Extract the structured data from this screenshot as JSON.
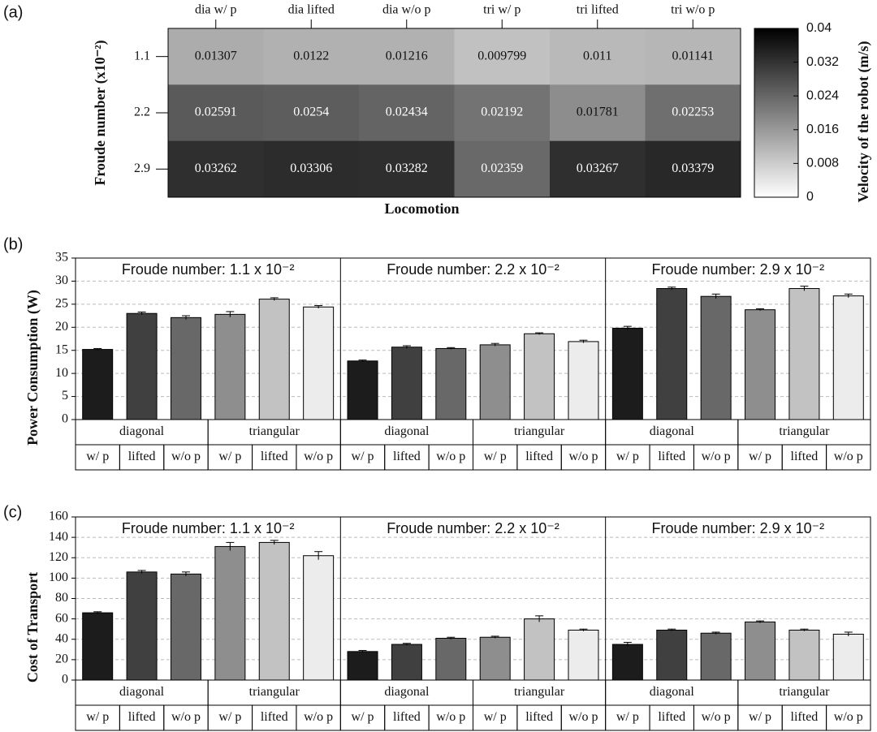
{
  "chart_data": [
    {
      "type": "heatmap",
      "panel_label": "(a)",
      "x_categories": [
        "dia w/ p",
        "dia lifted",
        "dia w/o p",
        "tri w/ p",
        "tri lifted",
        "tri w/o p"
      ],
      "y_categories": [
        "1.1",
        "2.2",
        "2.9"
      ],
      "values": [
        [
          0.01307,
          0.0122,
          0.01216,
          0.009799,
          0.011,
          0.01141
        ],
        [
          0.02591,
          0.0254,
          0.02434,
          0.02192,
          0.01781,
          0.02253
        ],
        [
          0.03262,
          0.03306,
          0.03282,
          0.02359,
          0.03267,
          0.03379
        ]
      ],
      "xlabel": "Locomotion",
      "ylabel": "Froude number (x10⁻²)",
      "colorbar_label": "Velocity of the robot (m/s)",
      "clim": [
        0,
        0.04
      ],
      "cticks": [
        0,
        0.008,
        0.016,
        0.024,
        0.032,
        0.04
      ]
    },
    {
      "type": "bar",
      "panel_label": "(b)",
      "ylabel": "Power Consumption (W)",
      "ylim": [
        0,
        35
      ],
      "yticks": [
        0,
        5,
        10,
        15,
        20,
        25,
        30,
        35
      ],
      "grid": true,
      "groups": [
        "diagonal",
        "triangular"
      ],
      "categories": [
        "w/ p",
        "lifted",
        "w/o p",
        "w/ p",
        "lifted",
        "w/o p"
      ],
      "colors": [
        "#1c1c1c",
        "#404040",
        "#686868",
        "#8e8e8e",
        "#c2c2c2",
        "#ececec"
      ],
      "subplots": [
        {
          "title": "Froude number: 1.1 x 10⁻²",
          "values": [
            15.2,
            23.0,
            22.1,
            22.8,
            26.1,
            24.4
          ],
          "errors": [
            0.2,
            0.3,
            0.4,
            0.6,
            0.3,
            0.3
          ]
        },
        {
          "title": "Froude number: 2.2 x 10⁻²",
          "values": [
            12.7,
            15.7,
            15.4,
            16.2,
            18.6,
            16.9
          ],
          "errors": [
            0.2,
            0.3,
            0.2,
            0.3,
            0.2,
            0.3
          ]
        },
        {
          "title": "Froude number: 2.9 x 10⁻²",
          "values": [
            19.8,
            28.4,
            26.7,
            23.8,
            28.4,
            26.8
          ],
          "errors": [
            0.4,
            0.3,
            0.5,
            0.2,
            0.5,
            0.4
          ]
        }
      ]
    },
    {
      "type": "bar",
      "panel_label": "(c)",
      "ylabel": "Cost of Transport",
      "ylim": [
        0,
        160
      ],
      "yticks": [
        0,
        20,
        40,
        60,
        80,
        100,
        120,
        140,
        160
      ],
      "grid": true,
      "groups": [
        "diagonal",
        "triangular"
      ],
      "categories": [
        "w/ p",
        "lifted",
        "w/o p",
        "w/ p",
        "lifted",
        "w/o p"
      ],
      "colors": [
        "#1c1c1c",
        "#404040",
        "#686868",
        "#8e8e8e",
        "#c2c2c2",
        "#ececec"
      ],
      "subplots": [
        {
          "title": "Froude number: 1.1 x 10⁻²",
          "values": [
            66,
            106,
            104,
            131,
            135,
            122
          ],
          "errors": [
            1,
            1.5,
            2,
            4,
            2,
            4
          ]
        },
        {
          "title": "Froude number: 2.2 x 10⁻²",
          "values": [
            28,
            35,
            41,
            42,
            60,
            49
          ],
          "errors": [
            1,
            1,
            1,
            1,
            3,
            1
          ]
        },
        {
          "title": "Froude number: 2.9 x 10⁻²",
          "values": [
            35,
            49,
            46,
            57,
            49,
            45
          ],
          "errors": [
            2,
            1,
            1,
            1,
            1,
            2
          ]
        }
      ]
    }
  ]
}
